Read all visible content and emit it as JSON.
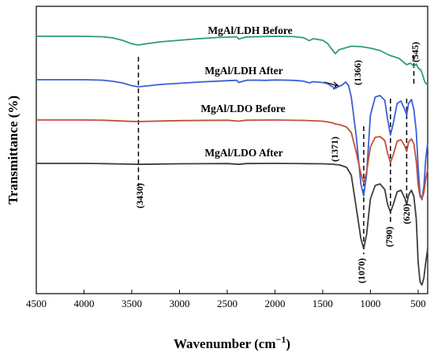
{
  "chart_data": {
    "type": "line",
    "xlabel": "Wavenumber (cm−1)",
    "xlabel_main": "Wavenumber (cm",
    "xlabel_sup": "−1",
    "xlabel_tail": ")",
    "ylabel": "Transmittance (%)",
    "xlim": [
      4500,
      400
    ],
    "x_ticks": [
      "4500",
      "4000",
      "3500",
      "3000",
      "2500",
      "2000",
      "1500",
      "1000",
      "500"
    ],
    "y_ticks_shown": false,
    "grid": false,
    "series": [
      {
        "name": "MgAl/LDH Before",
        "color": "#2e9e6a",
        "x": [
          4500,
          4000,
          3800,
          3700,
          3600,
          3500,
          3430,
          3350,
          3200,
          3000,
          2800,
          2600,
          2400,
          2380,
          2300,
          2000,
          1800,
          1700,
          1640,
          1600,
          1500,
          1450,
          1400,
          1366,
          1330,
          1300,
          1200,
          1100,
          1000,
          900,
          800,
          700,
          620,
          580,
          545,
          520,
          500,
          470,
          450,
          430,
          400
        ],
        "y": [
          0.0,
          0.0,
          -0.6,
          -2.0,
          -5.0,
          -9.5,
          -11.0,
          -9.5,
          -7.0,
          -5.0,
          -3.0,
          -1.5,
          -0.6,
          -3.5,
          -0.8,
          0.0,
          -0.4,
          -1.8,
          -5.5,
          -3.0,
          -5.0,
          -9.0,
          -17.0,
          -22.0,
          -17.0,
          -16.0,
          -12.5,
          -13.0,
          -15.0,
          -18.0,
          -24.0,
          -28.0,
          -36.0,
          -34.0,
          -38.0,
          -35.0,
          -40.0,
          -43.0,
          -50.0,
          -58.0,
          -62.0
        ]
      },
      {
        "name": "MgAl/LDH After",
        "color": "#3a5fd6",
        "x": [
          4500,
          4000,
          3800,
          3700,
          3600,
          3500,
          3430,
          3350,
          3200,
          3000,
          2800,
          2600,
          2400,
          2380,
          2300,
          2200,
          2100,
          2000,
          1900,
          1800,
          1700,
          1640,
          1600,
          1500,
          1450,
          1410,
          1366,
          1340,
          1300,
          1260,
          1230,
          1200,
          1150,
          1100,
          1070,
          1040,
          1000,
          950,
          900,
          850,
          820,
          790,
          760,
          720,
          680,
          640,
          620,
          600,
          570,
          545,
          520,
          500,
          480,
          460,
          440,
          420,
          400
        ],
        "y": [
          0.0,
          0.0,
          -0.6,
          -2.0,
          -4.0,
          -7.5,
          -9.0,
          -8.0,
          -6.0,
          -4.5,
          -3.0,
          -1.8,
          -0.7,
          -3.5,
          -0.7,
          -0.5,
          -0.8,
          -0.3,
          -0.5,
          -0.8,
          -1.8,
          -4.0,
          -2.5,
          -3.5,
          -5.0,
          -8.0,
          -11.0,
          -9.0,
          -7.0,
          -3.0,
          -7.0,
          -22.0,
          -70.0,
          -132.0,
          -147.0,
          -120.0,
          -45.0,
          -22.0,
          -20.0,
          -26.0,
          -50.0,
          -70.0,
          -55.0,
          -30.0,
          -27.0,
          -38.0,
          -45.0,
          -30.0,
          -25.0,
          -38.0,
          -65.0,
          -110.0,
          -145.0,
          -152.0,
          -135.0,
          -100.0,
          -80.0
        ]
      },
      {
        "name": "MgAl/LDO Before",
        "color": "#c0503a",
        "x": [
          4500,
          4000,
          3800,
          3700,
          3500,
          3430,
          3200,
          3000,
          2500,
          2380,
          2300,
          2000,
          1700,
          1500,
          1400,
          1371,
          1320,
          1250,
          1200,
          1150,
          1100,
          1070,
          1040,
          1000,
          950,
          900,
          850,
          820,
          790,
          760,
          720,
          680,
          640,
          620,
          600,
          570,
          545,
          520,
          500,
          480,
          460,
          440,
          420,
          400
        ],
        "y": [
          0.0,
          0.0,
          -0.3,
          -0.8,
          -1.8,
          -2.0,
          -1.3,
          -0.8,
          -0.3,
          -1.5,
          -0.3,
          0.0,
          -0.5,
          -1.5,
          -3.5,
          -5.0,
          -6.0,
          -9.0,
          -16.0,
          -40.0,
          -68.0,
          -80.0,
          -66.0,
          -34.0,
          -22.0,
          -21.0,
          -26.0,
          -42.0,
          -54.0,
          -44.0,
          -27.0,
          -25.0,
          -33.0,
          -40.0,
          -28.0,
          -24.0,
          -30.0,
          -52.0,
          -82.0,
          -97.0,
          -100.0,
          -92.0,
          -75.0,
          -62.0
        ]
      },
      {
        "name": "MgAl/LDO After",
        "color": "#3d3d3d",
        "x": [
          4500,
          4000,
          3800,
          3500,
          3430,
          3200,
          3000,
          2500,
          2380,
          2300,
          2000,
          1700,
          1500,
          1400,
          1320,
          1250,
          1200,
          1150,
          1100,
          1070,
          1040,
          1000,
          950,
          900,
          850,
          820,
          790,
          760,
          720,
          680,
          640,
          620,
          600,
          570,
          545,
          520,
          500,
          480,
          460,
          440,
          420,
          400
        ],
        "y": [
          0.0,
          0.0,
          -0.3,
          -1.0,
          -1.2,
          -0.8,
          -0.5,
          -0.2,
          -1.2,
          -0.2,
          0.0,
          -0.3,
          -0.5,
          -1.0,
          -2.0,
          -5.0,
          -15.0,
          -55.0,
          -95.0,
          -108.0,
          -90.0,
          -45.0,
          -28.0,
          -26.0,
          -33.0,
          -52.0,
          -62.0,
          -52.0,
          -36.0,
          -34.0,
          -44.0,
          -52.0,
          -40.0,
          -34.0,
          -42.0,
          -70.0,
          -125.0,
          -150.0,
          -154.0,
          -145.0,
          -125.0,
          -108.0
        ]
      }
    ],
    "series_labels": [
      "MgAl/LDH Before",
      "MgAl/LDH After",
      "MgAl/LDO Before",
      "MgAl/LDO After"
    ],
    "annotations": [
      {
        "text": "(3430)",
        "x": 3430
      },
      {
        "text": "(1366)",
        "x": 1366
      },
      {
        "text": "(545)",
        "x": 545
      },
      {
        "text": "(1371)",
        "x": 1371
      },
      {
        "text": "(1070)",
        "x": 1070
      },
      {
        "text": "(790)",
        "x": 790
      },
      {
        "text": "(620)",
        "x": 620
      }
    ]
  }
}
